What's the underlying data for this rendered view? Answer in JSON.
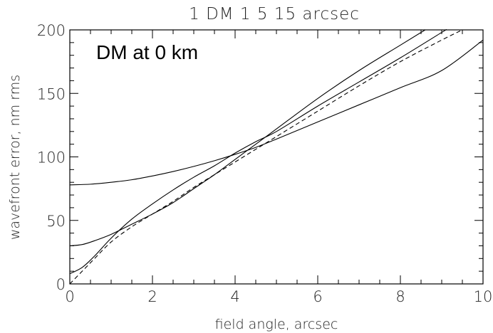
{
  "chart_data": {
    "type": "line",
    "title": "1 DM 1 5 15 arcsec",
    "xlabel": "field angle, arcsec",
    "ylabel": "wavefront error, nm rms",
    "annotation": "DM at 0 km",
    "xlim": [
      0,
      10
    ],
    "ylim": [
      0,
      200
    ],
    "xticks": [
      0,
      2,
      4,
      6,
      8,
      10
    ],
    "xtick_labels": [
      "0",
      "2",
      "4",
      "6",
      "8",
      "10"
    ],
    "yticks": [
      0,
      50,
      100,
      150,
      200
    ],
    "ytick_labels": [
      "0",
      "50",
      "100",
      "150",
      "200"
    ],
    "grid": false,
    "series": [
      {
        "style": "solid",
        "x": [
          0,
          0.5,
          1,
          1.5,
          2,
          2.5,
          3,
          3.5,
          4,
          4.5,
          5,
          6,
          7,
          8,
          9,
          10
        ],
        "y": [
          78,
          78.5,
          80,
          82,
          85,
          88.5,
          92.5,
          97,
          102,
          107.5,
          114,
          127.5,
          141,
          154.5,
          168,
          192
        ]
      },
      {
        "style": "solid",
        "x": [
          0,
          0.3,
          0.6,
          1,
          1.5,
          2,
          2.5,
          3,
          3.5,
          4,
          4.5,
          5,
          6,
          7,
          8,
          8.6
        ],
        "y": [
          30,
          31,
          34,
          39,
          47,
          55,
          64,
          75,
          86,
          98,
          110,
          122,
          146,
          168,
          188,
          200
        ]
      },
      {
        "style": "solid",
        "x": [
          0,
          0.3,
          0.6,
          1,
          1.5,
          2,
          2.5,
          3,
          3.5,
          4,
          4.5,
          5,
          6,
          7,
          8,
          9,
          9.1
        ],
        "y": [
          8,
          13,
          22,
          36,
          51,
          63,
          74,
          84,
          93,
          103,
          112,
          120,
          140,
          159,
          178,
          198,
          200
        ]
      },
      {
        "style": "dashed",
        "x": [
          0,
          0.3,
          0.6,
          1,
          1.5,
          2,
          2.5,
          3,
          3.5,
          4,
          4.5,
          5,
          6,
          7,
          8,
          9,
          9.5
        ],
        "y": [
          0,
          10,
          20,
          33,
          45,
          55,
          65,
          76,
          86,
          96,
          106,
          116,
          136,
          156,
          175,
          192,
          200
        ]
      }
    ]
  }
}
